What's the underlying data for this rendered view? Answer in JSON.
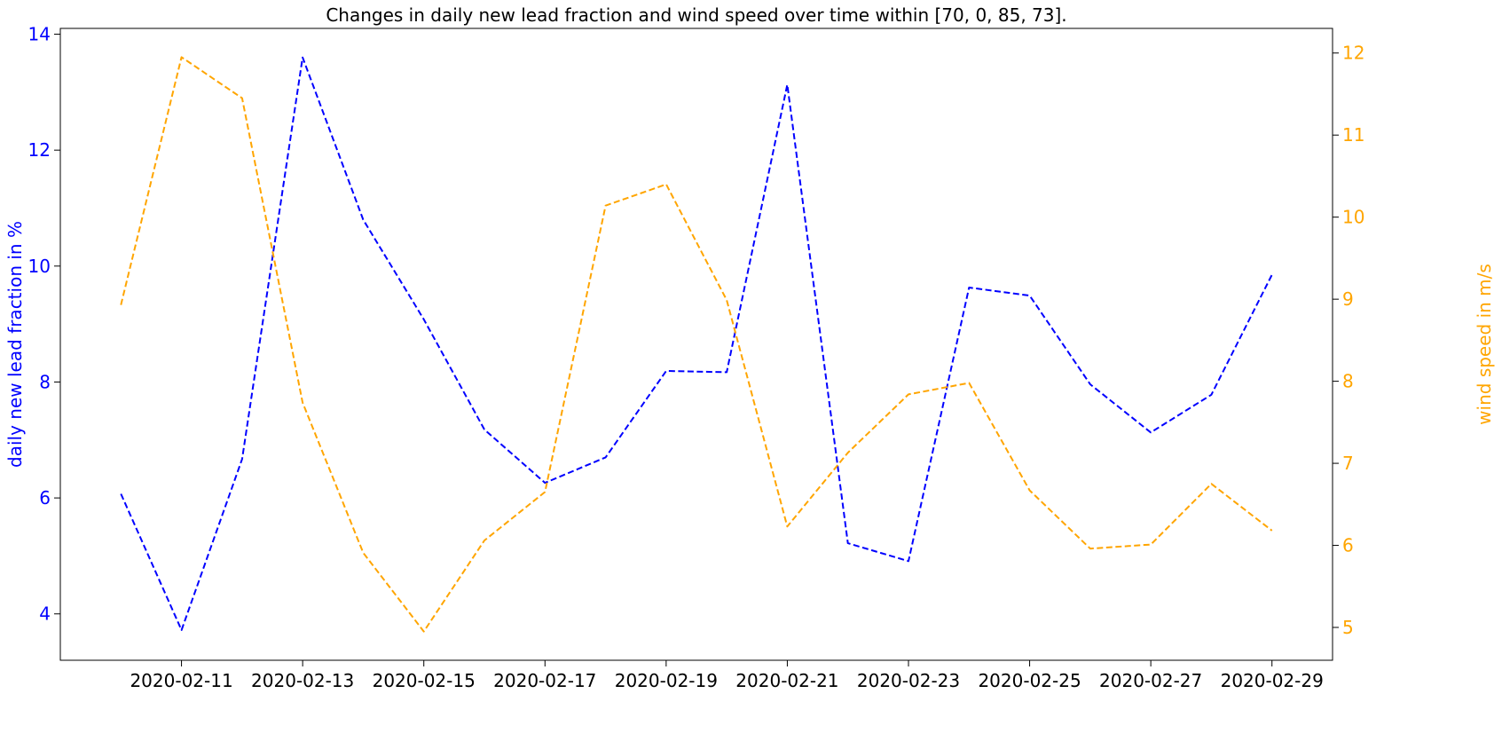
{
  "chart_data": {
    "type": "line",
    "title": "Changes in daily new lead fraction and wind speed over time within [70, 0, 85, 73].",
    "x": [
      "2020-02-10",
      "2020-02-11",
      "2020-02-12",
      "2020-02-13",
      "2020-02-14",
      "2020-02-15",
      "2020-02-16",
      "2020-02-17",
      "2020-02-18",
      "2020-02-19",
      "2020-02-20",
      "2020-02-21",
      "2020-02-22",
      "2020-02-23",
      "2020-02-24",
      "2020-02-25",
      "2020-02-26",
      "2020-02-27",
      "2020-02-28",
      "2020-02-29"
    ],
    "xticks": [
      "2020-02-11",
      "2020-02-13",
      "2020-02-15",
      "2020-02-17",
      "2020-02-19",
      "2020-02-21",
      "2020-02-23",
      "2020-02-25",
      "2020-02-27",
      "2020-02-29"
    ],
    "xlim": [
      "2020-02-09",
      "2020-03-01"
    ],
    "left_axis": {
      "label": "daily new lead fraction in %",
      "ylim": [
        3.2,
        14.1
      ],
      "ticks": [
        4,
        6,
        8,
        10,
        12,
        14
      ],
      "color": "#0000ff"
    },
    "right_axis": {
      "label": "wind speed in m/s",
      "ylim": [
        4.6,
        12.3
      ],
      "ticks": [
        5,
        6,
        7,
        8,
        9,
        10,
        11,
        12
      ],
      "color": "#ffa500"
    },
    "series": [
      {
        "axis": "left",
        "color": "#0000ff",
        "style": "dashed",
        "values": [
          6.07,
          3.72,
          6.67,
          13.6,
          10.8,
          9.08,
          7.18,
          6.26,
          6.7,
          8.19,
          8.17,
          13.13,
          5.22,
          4.91,
          9.63,
          9.49,
          7.96,
          7.13,
          7.78,
          9.85
        ]
      },
      {
        "axis": "right",
        "color": "#ffa500",
        "style": "dashed",
        "values": [
          8.93,
          11.95,
          11.45,
          7.74,
          5.91,
          4.95,
          6.06,
          6.65,
          10.14,
          10.4,
          8.99,
          6.23,
          7.13,
          7.84,
          7.98,
          6.67,
          5.96,
          6.01,
          6.75,
          6.18
        ]
      }
    ]
  }
}
